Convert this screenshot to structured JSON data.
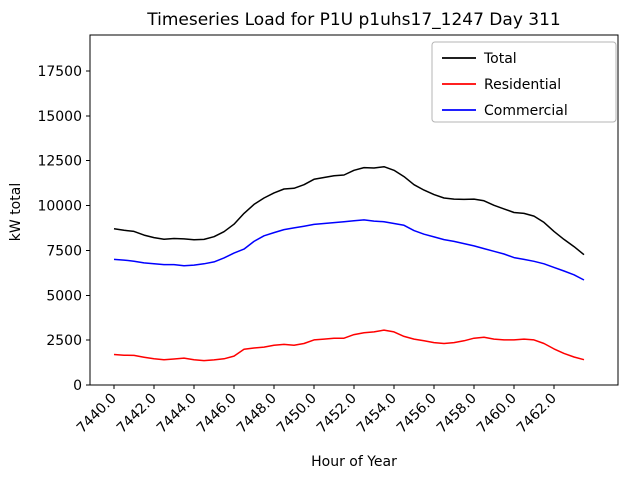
{
  "chart_data": {
    "type": "line",
    "title": "Timeseries Load for P1U p1uhs17_1247  Day 311",
    "xlabel": "Hour of Year",
    "ylabel": "kW total",
    "xlim": [
      7438.8,
      7465.2
    ],
    "ylim": [
      0,
      19500
    ],
    "grid": false,
    "legend_position": "upper right",
    "x_ticks": [
      "7440.0",
      "7442.0",
      "7444.0",
      "7446.0",
      "7448.0",
      "7450.0",
      "7452.0",
      "7454.0",
      "7456.0",
      "7458.0",
      "7460.0",
      "7462.0"
    ],
    "x_tick_values": [
      7440,
      7442,
      7444,
      7446,
      7448,
      7450,
      7452,
      7454,
      7456,
      7458,
      7460,
      7462
    ],
    "y_ticks": [
      "0",
      "2500",
      "5000",
      "7500",
      "10000",
      "12500",
      "15000",
      "17500"
    ],
    "y_tick_values": [
      0,
      2500,
      5000,
      7500,
      10000,
      12500,
      15000,
      17500
    ],
    "x": [
      7440,
      7440.5,
      7441,
      7441.5,
      7442,
      7442.5,
      7443,
      7443.5,
      7444,
      7444.5,
      7445,
      7445.5,
      7446,
      7446.5,
      7447,
      7447.5,
      7448,
      7448.5,
      7449,
      7449.5,
      7450,
      7450.5,
      7451,
      7451.5,
      7452,
      7452.5,
      7453,
      7453.5,
      7454,
      7454.5,
      7455,
      7455.5,
      7456,
      7456.5,
      7457,
      7457.5,
      7458,
      7458.5,
      7459,
      7459.5,
      7460,
      7460.5,
      7461,
      7461.5,
      7462,
      7462.5,
      7463,
      7463.5
    ],
    "series": [
      {
        "name": "Total",
        "color": "#000000",
        "values": [
          8700,
          8620,
          8560,
          8350,
          8210,
          8120,
          8160,
          8140,
          8090,
          8110,
          8260,
          8540,
          8960,
          9560,
          10060,
          10420,
          10700,
          10920,
          10960,
          11160,
          11460,
          11560,
          11660,
          11700,
          11960,
          12110,
          12090,
          12160,
          11960,
          11610,
          11160,
          10860,
          10610,
          10420,
          10360,
          10340,
          10360,
          10260,
          10010,
          9810,
          9610,
          9560,
          9410,
          9060,
          8560,
          8110,
          7710,
          7260
        ]
      },
      {
        "name": "Residential",
        "color": "#ff0000",
        "values": [
          1700,
          1660,
          1650,
          1550,
          1460,
          1410,
          1450,
          1500,
          1410,
          1360,
          1400,
          1460,
          1610,
          1990,
          2060,
          2110,
          2210,
          2260,
          2210,
          2310,
          2510,
          2560,
          2610,
          2610,
          2810,
          2910,
          2960,
          3060,
          2960,
          2710,
          2560,
          2460,
          2360,
          2310,
          2360,
          2460,
          2610,
          2660,
          2560,
          2510,
          2510,
          2560,
          2510,
          2310,
          2010,
          1760,
          1560,
          1410
        ]
      },
      {
        "name": "Commercial",
        "color": "#0000ff",
        "values": [
          7000,
          6960,
          6900,
          6800,
          6750,
          6710,
          6710,
          6640,
          6680,
          6750,
          6860,
          7080,
          7350,
          7570,
          8000,
          8310,
          8490,
          8660,
          8750,
          8850,
          8950,
          9000,
          9050,
          9090,
          9150,
          9200,
          9130,
          9100,
          9000,
          8900,
          8600,
          8400,
          8250,
          8100,
          8000,
          7880,
          7750,
          7600,
          7450,
          7300,
          7100,
          7000,
          6890,
          6750,
          6550,
          6350,
          6140,
          5850
        ]
      }
    ]
  }
}
